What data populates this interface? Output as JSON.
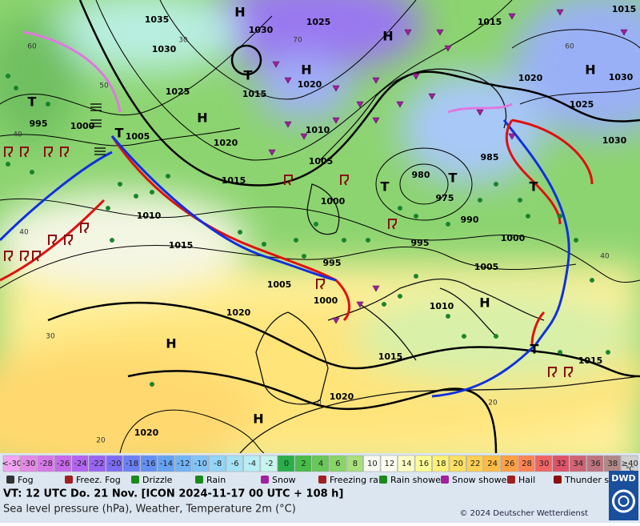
{
  "map": {
    "pressure_labels": [
      "1035",
      "1030",
      "1025",
      "1015",
      "1015",
      "1030",
      "1025",
      "1000",
      "995",
      "1005",
      "1020",
      "1015",
      "1010",
      "1005",
      "1000",
      "980",
      "975",
      "985",
      "990",
      "995",
      "1000",
      "1005",
      "995",
      "1005",
      "1000",
      "1010",
      "1015",
      "1020",
      "1010",
      "1015",
      "1015",
      "1020",
      "1020",
      "1020",
      "1025",
      "1030",
      "1030",
      "1020",
      "1015"
    ],
    "isotherm_labels": [
      "60",
      "50",
      "40",
      "40",
      "30",
      "20",
      "30",
      "70",
      "60",
      "20",
      "0",
      "40"
    ],
    "highs": [
      "H",
      "H",
      "H",
      "H",
      "H",
      "H",
      "H",
      "H"
    ],
    "lows": [
      "T",
      "T",
      "T",
      "T",
      "T",
      "T",
      "T"
    ]
  },
  "legend": {
    "temperature_scale": [
      {
        "label": "<-30",
        "color": "#f2a6f2"
      },
      {
        "label": "-30",
        "color": "#e48ae6"
      },
      {
        "label": "-28",
        "color": "#d878e8"
      },
      {
        "label": "-26",
        "color": "#c868ec"
      },
      {
        "label": "-24",
        "color": "#b464f2"
      },
      {
        "label": "-22",
        "color": "#9a64f4"
      },
      {
        "label": "-20",
        "color": "#7e6cf6"
      },
      {
        "label": "-18",
        "color": "#6c80f6"
      },
      {
        "label": "-16",
        "color": "#6490f4"
      },
      {
        "label": "-14",
        "color": "#64a2f4"
      },
      {
        "label": "-12",
        "color": "#72b4f8"
      },
      {
        "label": "-10",
        "color": "#82c4f8"
      },
      {
        "label": "-8",
        "color": "#94d4f8"
      },
      {
        "label": "-6",
        "color": "#a6e2f6"
      },
      {
        "label": "-4",
        "color": "#b8eef4"
      },
      {
        "label": "-2",
        "color": "#c8f6ee"
      },
      {
        "label": "0",
        "color": "#28b048"
      },
      {
        "label": "2",
        "color": "#48bc48"
      },
      {
        "label": "4",
        "color": "#68c858"
      },
      {
        "label": "6",
        "color": "#88d468"
      },
      {
        "label": "8",
        "color": "#a8e07c"
      },
      {
        "label": "10",
        "color": "#f8f8f0"
      },
      {
        "label": "12",
        "color": "#fffff0"
      },
      {
        "label": "14",
        "color": "#ffffc4"
      },
      {
        "label": "16",
        "color": "#ffff98"
      },
      {
        "label": "18",
        "color": "#fff078"
      },
      {
        "label": "20",
        "color": "#ffe064"
      },
      {
        "label": "22",
        "color": "#ffd054"
      },
      {
        "label": "24",
        "color": "#ffbc44"
      },
      {
        "label": "26",
        "color": "#ffa044"
      },
      {
        "label": "28",
        "color": "#ff8454"
      },
      {
        "label": "30",
        "color": "#f06464"
      },
      {
        "label": "32",
        "color": "#e05468"
      },
      {
        "label": "34",
        "color": "#d06474"
      },
      {
        "label": "36",
        "color": "#c07480"
      },
      {
        "label": "38",
        "color": "#b08888"
      },
      {
        "label": "≥40",
        "color": "#d0d0d0"
      }
    ],
    "temperature_unit": "°C",
    "weather": [
      "Fog",
      "Freez. Fog",
      "Drizzle",
      "Rain",
      "Snow",
      "Freezing rain",
      "Rain shower",
      "Snow shower",
      "Hail",
      "Thunder storm"
    ]
  },
  "footer": {
    "valid_time": "VT: 12 UTC Do.  21 Nov. [ICON 2024-11-17  00 UTC + 108 h]",
    "description": "Sea level pressure (hPa), Weather, Temperature 2m (°C)",
    "copyright": "© 2024 Deutscher Wetterdienst",
    "logo": "DWD"
  }
}
